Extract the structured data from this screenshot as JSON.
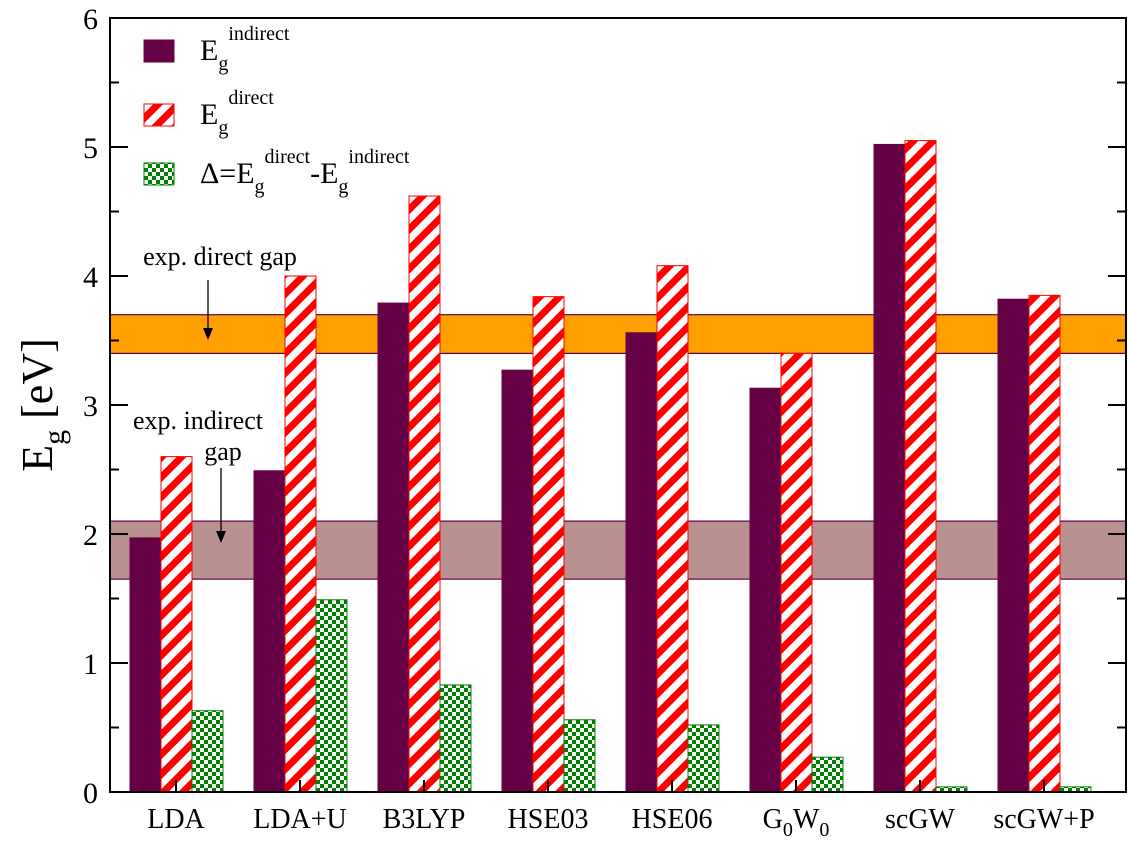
{
  "chart_data": {
    "type": "bar",
    "categories": [
      {
        "main": "LDA",
        "sub1": "",
        "mid": "",
        "sub2": ""
      },
      {
        "main": "LDA+U",
        "sub1": "",
        "mid": "",
        "sub2": ""
      },
      {
        "main": "B3LYP",
        "sub1": "",
        "mid": "",
        "sub2": ""
      },
      {
        "main": "HSE03",
        "sub1": "",
        "mid": "",
        "sub2": ""
      },
      {
        "main": "HSE06",
        "sub1": "",
        "mid": "",
        "sub2": ""
      },
      {
        "main": "G",
        "sub1": "0",
        "mid": "W",
        "sub2": "0"
      },
      {
        "main": "scGW",
        "sub1": "",
        "mid": "",
        "sub2": ""
      },
      {
        "main": "scGW+P",
        "sub1": "",
        "mid": "",
        "sub2": ""
      }
    ],
    "series": [
      {
        "key": "indirect",
        "values": [
          1.97,
          2.49,
          3.79,
          3.27,
          3.56,
          3.13,
          5.02,
          3.82
        ],
        "color": "#660044"
      },
      {
        "key": "direct",
        "values": [
          2.6,
          4.0,
          4.62,
          3.84,
          4.08,
          3.4,
          5.05,
          3.85
        ],
        "color": "#ff0000"
      },
      {
        "key": "delta",
        "values": [
          0.63,
          1.49,
          0.83,
          0.56,
          0.52,
          0.27,
          0.04,
          0.04
        ],
        "color": "#008000"
      }
    ],
    "legend": [
      {
        "base": "E",
        "sub": "g",
        "sup": "indirect"
      },
      {
        "base": "E",
        "sub": "g",
        "sup": "direct"
      },
      {
        "prefix": "Δ=E",
        "sub1": "g",
        "sup1": "direct",
        "mid": "-E",
        "sub2": "g",
        "sup2": "indirect"
      }
    ],
    "ylabel": {
      "base": "E",
      "sub": "g",
      "unit": "[eV]"
    },
    "ylim": [
      0,
      6
    ],
    "yticks": [
      0,
      1,
      2,
      3,
      4,
      5,
      6
    ],
    "bands": [
      {
        "name": "exp-direct",
        "from": 3.4,
        "to": 3.7,
        "color": "#ffa000"
      },
      {
        "name": "exp-indirect",
        "from": 1.65,
        "to": 2.1,
        "color": "#b89090"
      }
    ],
    "annotations": [
      {
        "name": "direct",
        "lines": [
          "exp. direct gap"
        ]
      },
      {
        "name": "indirect",
        "lines": [
          "exp. indirect",
          "gap"
        ]
      }
    ],
    "legend_position": "top-left",
    "grid": false
  }
}
